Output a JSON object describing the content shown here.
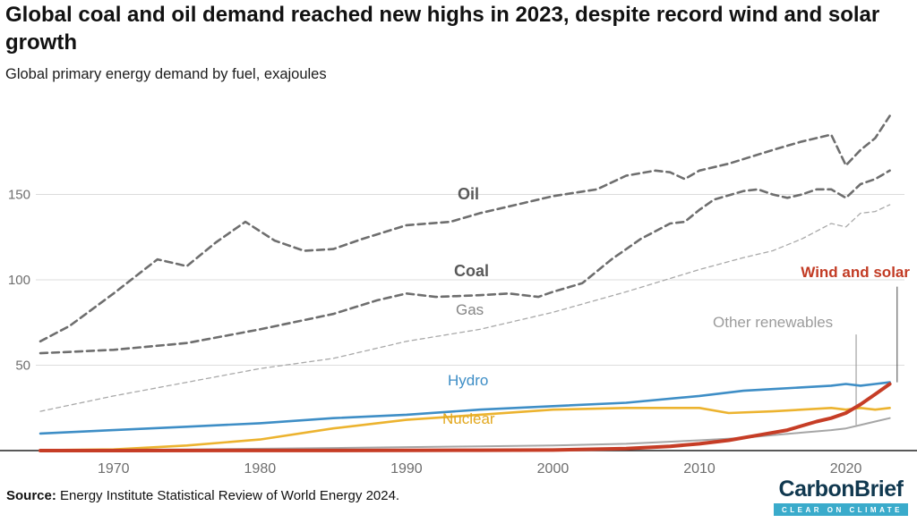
{
  "header": {
    "title": "Global coal and oil demand reached new highs in 2023, despite record wind and solar growth",
    "subtitle": "Global primary energy demand by fuel, exajoules"
  },
  "footer": {
    "source_label": "Source:",
    "source_text": " Energy Institute Statistical Review of World Energy 2024.",
    "logo_text": "CarbonBrief",
    "logo_tagline": "CLEAR ON CLIMATE"
  },
  "chart_data": {
    "type": "line",
    "title": "Global coal and oil demand reached new highs in 2023, despite record wind and solar growth",
    "subtitle": "Global primary energy demand by fuel, exajoules",
    "xlabel": "",
    "ylabel": "exajoules",
    "x_range": [
      1965,
      2024
    ],
    "y_range": [
      0,
      200
    ],
    "x_ticks": [
      1970,
      1980,
      1990,
      2000,
      2010,
      2020
    ],
    "y_ticks": [
      50,
      100,
      150
    ],
    "grid": "horizontal",
    "legend_position": "inline-labels",
    "series": [
      {
        "name": "Oil",
        "color": "#6e6e6e",
        "width": 2.6,
        "dash": "8 5",
        "x": [
          1965,
          1967,
          1970,
          1973,
          1974,
          1975,
          1977,
          1979,
          1981,
          1983,
          1985,
          1987,
          1990,
          1993,
          1995,
          1998,
          2000,
          2003,
          2005,
          2007,
          2008,
          2009,
          2010,
          2012,
          2015,
          2017,
          2019,
          2020,
          2021,
          2022,
          2023
        ],
        "values": [
          64,
          73,
          92,
          112,
          110,
          108,
          122,
          134,
          123,
          117,
          118,
          124,
          132,
          134,
          139,
          145,
          149,
          153,
          161,
          164,
          163,
          159,
          164,
          168,
          176,
          181,
          185,
          167,
          176,
          183,
          196
        ]
      },
      {
        "name": "Coal",
        "color": "#6e6e6e",
        "width": 2.6,
        "dash": "8 5",
        "x": [
          1965,
          1970,
          1975,
          1980,
          1985,
          1988,
          1990,
          1992,
          1995,
          1997,
          1999,
          2000,
          2002,
          2004,
          2006,
          2008,
          2009,
          2010,
          2011,
          2013,
          2014,
          2015,
          2016,
          2017,
          2018,
          2019,
          2020,
          2021,
          2022,
          2023
        ],
        "values": [
          57,
          59,
          63,
          71,
          80,
          88,
          92,
          90,
          91,
          92,
          90,
          93,
          98,
          112,
          124,
          133,
          134,
          141,
          147,
          152,
          153,
          150,
          148,
          150,
          153,
          153,
          148,
          156,
          159,
          164
        ]
      },
      {
        "name": "Gas",
        "color": "#a9a9a9",
        "width": 1.3,
        "dash": "5 4",
        "x": [
          1965,
          1970,
          1975,
          1980,
          1985,
          1990,
          1995,
          2000,
          2005,
          2010,
          2013,
          2015,
          2017,
          2019,
          2020,
          2021,
          2022,
          2023
        ],
        "values": [
          23,
          32,
          40,
          48,
          54,
          64,
          71,
          81,
          93,
          106,
          113,
          117,
          124,
          133,
          131,
          139,
          140,
          144
        ]
      },
      {
        "name": "Hydro",
        "color": "#3e8ec6",
        "width": 2.6,
        "dash": null,
        "x": [
          1965,
          1970,
          1975,
          1980,
          1985,
          1990,
          1995,
          2000,
          2005,
          2010,
          2013,
          2015,
          2017,
          2019,
          2020,
          2021,
          2022,
          2023
        ],
        "values": [
          10,
          12,
          14,
          16,
          19,
          21,
          24,
          26,
          28,
          32,
          35,
          36,
          37,
          38,
          39,
          38,
          39,
          40
        ]
      },
      {
        "name": "Nuclear",
        "color": "#ecb32f",
        "width": 2.6,
        "dash": null,
        "x": [
          1965,
          1970,
          1975,
          1980,
          1985,
          1990,
          1995,
          2000,
          2005,
          2010,
          2012,
          2015,
          2019,
          2020,
          2021,
          2022,
          2023
        ],
        "values": [
          0.2,
          0.7,
          3,
          6.5,
          13,
          18,
          21,
          24,
          25,
          25,
          22,
          23,
          25,
          24,
          25,
          24,
          25
        ]
      },
      {
        "name": "Other renewables",
        "color": "#a6a6a6",
        "width": 2,
        "dash": null,
        "x": [
          1965,
          1975,
          1985,
          1995,
          2000,
          2005,
          2010,
          2013,
          2015,
          2017,
          2019,
          2020,
          2021,
          2022,
          2023
        ],
        "values": [
          0.4,
          0.7,
          1.5,
          2.5,
          3,
          4,
          6,
          7.5,
          9,
          10.5,
          12,
          13,
          15,
          17,
          19
        ]
      },
      {
        "name": "Wind and solar",
        "color": "#c63d26",
        "width": 4,
        "dash": null,
        "x": [
          1965,
          1985,
          1990,
          1995,
          2000,
          2005,
          2008,
          2010,
          2012,
          2014,
          2016,
          2018,
          2019,
          2020,
          2021,
          2022,
          2023
        ],
        "values": [
          0,
          0.05,
          0.1,
          0.2,
          0.3,
          1.2,
          2.5,
          4,
          6,
          9,
          12,
          17,
          19,
          22,
          27,
          33,
          39
        ]
      }
    ],
    "annotation_lines": [
      {
        "name": "other-renewables-pointer",
        "x": 2020.7,
        "y_from": 68,
        "y_to": 15,
        "color": "#8f8f8f"
      },
      {
        "name": "wind-solar-pointer",
        "x": 2023.5,
        "y_from": 96,
        "y_to": 40,
        "color": "#4a4a4a"
      }
    ]
  }
}
